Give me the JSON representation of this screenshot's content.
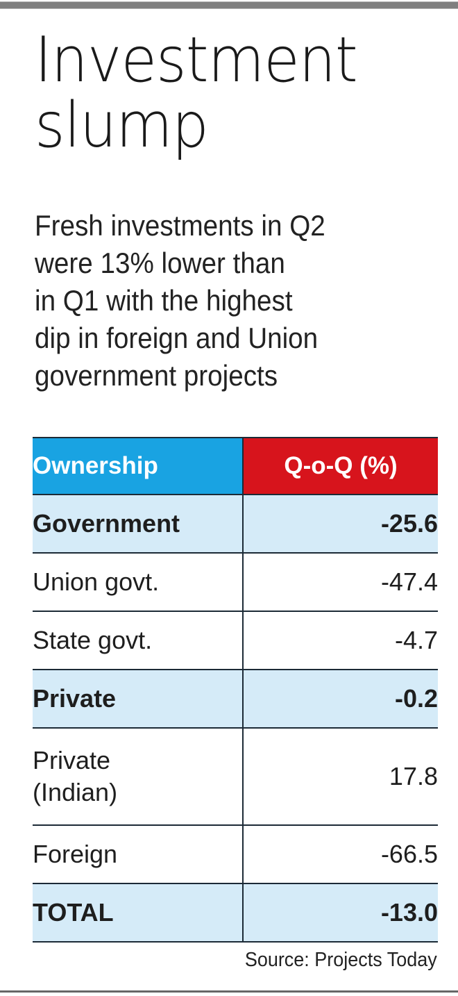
{
  "title": "Investment slump",
  "title_lines": [
    "Investment",
    "slump"
  ],
  "subtitle": "Fresh investments in Q2 were 13% lower than in Q1 with the highest dip in foreign and Union government projects",
  "subtitle_lines": [
    "Fresh investments in Q2",
    "were 13% lower than",
    "in Q1 with the highest",
    "dip in foreign and Union",
    "government projects"
  ],
  "table": {
    "headers": [
      "Ownership",
      "Q-o-Q (%)"
    ],
    "header_colors": [
      "#19a3e2",
      "#d7141c"
    ],
    "highlight_color": "#d5ebf8",
    "rows": [
      {
        "label": "Government",
        "value": "-25.6",
        "highlight": true
      },
      {
        "label": "Union govt.",
        "value": "-47.4",
        "highlight": false
      },
      {
        "label": "State govt.",
        "value": "-4.7",
        "highlight": false
      },
      {
        "label": "Private",
        "value": "-0.2",
        "highlight": true
      },
      {
        "label": "Private (Indian)",
        "label_lines": [
          "Private",
          "(Indian)"
        ],
        "value": "17.8",
        "highlight": false
      },
      {
        "label": "Foreign",
        "value": "-66.5",
        "highlight": false
      },
      {
        "label": "TOTAL",
        "value": "-13.0",
        "highlight": true
      }
    ]
  },
  "source": "Source: Projects Today",
  "chart_data": {
    "type": "table",
    "title": "Investment slump",
    "subtitle": "Fresh investments in Q2 were 13% lower than in Q1 with the highest dip in foreign and Union government projects",
    "columns": [
      "Ownership",
      "Q-o-Q (%)"
    ],
    "rows": [
      [
        "Government",
        -25.6
      ],
      [
        "Union govt.",
        -47.4
      ],
      [
        "State govt.",
        -4.7
      ],
      [
        "Private",
        -0.2
      ],
      [
        "Private (Indian)",
        17.8
      ],
      [
        "Foreign",
        -66.5
      ],
      [
        "TOTAL",
        -13.0
      ]
    ],
    "source": "Source: Projects Today"
  }
}
